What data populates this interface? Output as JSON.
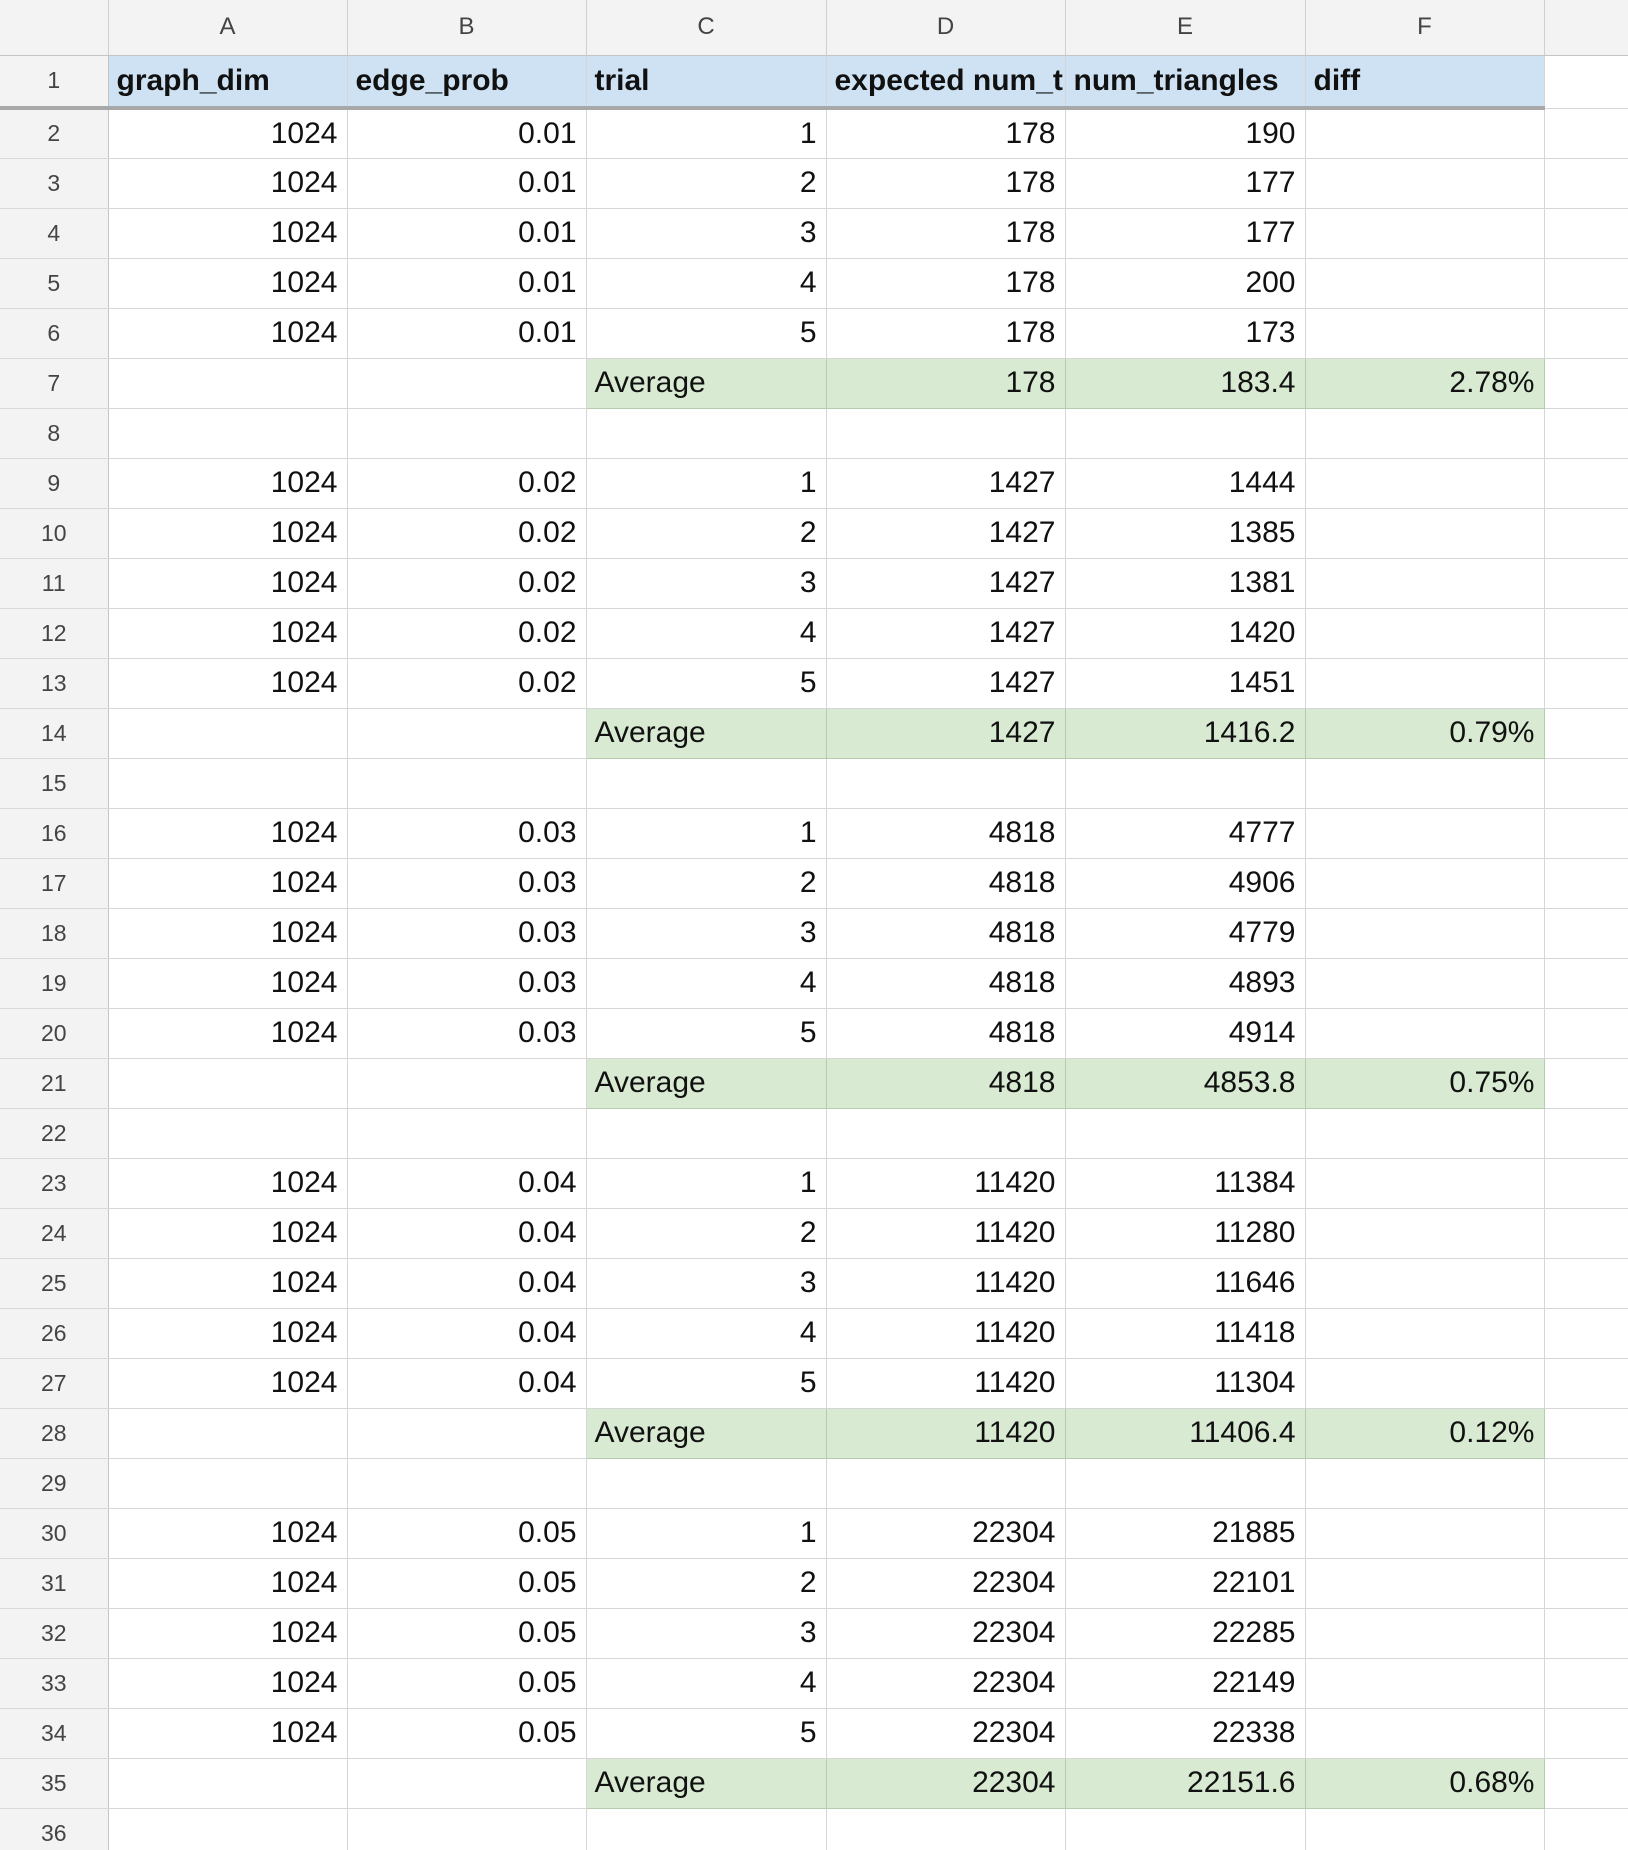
{
  "columns": [
    "A",
    "B",
    "C",
    "D",
    "E",
    "F"
  ],
  "header": {
    "row": "1",
    "cells": [
      "graph_dim",
      "edge_prob",
      "trial",
      "expected num_triangles",
      "num_triangles",
      "diff"
    ],
    "visible": [
      "graph_dim",
      "edge_prob",
      "trial",
      "expected num_t",
      "num_triangles",
      "diff"
    ]
  },
  "rows": [
    {
      "row": "2",
      "kind": "data",
      "cells": [
        "1024",
        "0.01",
        "1",
        "178",
        "190",
        ""
      ]
    },
    {
      "row": "3",
      "kind": "data",
      "cells": [
        "1024",
        "0.01",
        "2",
        "178",
        "177",
        ""
      ]
    },
    {
      "row": "4",
      "kind": "data",
      "cells": [
        "1024",
        "0.01",
        "3",
        "178",
        "177",
        ""
      ]
    },
    {
      "row": "5",
      "kind": "data",
      "cells": [
        "1024",
        "0.01",
        "4",
        "178",
        "200",
        ""
      ]
    },
    {
      "row": "6",
      "kind": "data",
      "cells": [
        "1024",
        "0.01",
        "5",
        "178",
        "173",
        ""
      ]
    },
    {
      "row": "7",
      "kind": "avg",
      "cells": [
        "",
        "",
        "Average",
        "178",
        "183.4",
        "2.78%"
      ]
    },
    {
      "row": "8",
      "kind": "blank",
      "cells": [
        "",
        "",
        "",
        "",
        "",
        ""
      ]
    },
    {
      "row": "9",
      "kind": "data",
      "cells": [
        "1024",
        "0.02",
        "1",
        "1427",
        "1444",
        ""
      ]
    },
    {
      "row": "10",
      "kind": "data",
      "cells": [
        "1024",
        "0.02",
        "2",
        "1427",
        "1385",
        ""
      ]
    },
    {
      "row": "11",
      "kind": "data",
      "cells": [
        "1024",
        "0.02",
        "3",
        "1427",
        "1381",
        ""
      ]
    },
    {
      "row": "12",
      "kind": "data",
      "cells": [
        "1024",
        "0.02",
        "4",
        "1427",
        "1420",
        ""
      ]
    },
    {
      "row": "13",
      "kind": "data",
      "cells": [
        "1024",
        "0.02",
        "5",
        "1427",
        "1451",
        ""
      ]
    },
    {
      "row": "14",
      "kind": "avg",
      "cells": [
        "",
        "",
        "Average",
        "1427",
        "1416.2",
        "0.79%"
      ]
    },
    {
      "row": "15",
      "kind": "blank",
      "cells": [
        "",
        "",
        "",
        "",
        "",
        ""
      ]
    },
    {
      "row": "16",
      "kind": "data",
      "cells": [
        "1024",
        "0.03",
        "1",
        "4818",
        "4777",
        ""
      ]
    },
    {
      "row": "17",
      "kind": "data",
      "cells": [
        "1024",
        "0.03",
        "2",
        "4818",
        "4906",
        ""
      ]
    },
    {
      "row": "18",
      "kind": "data",
      "cells": [
        "1024",
        "0.03",
        "3",
        "4818",
        "4779",
        ""
      ]
    },
    {
      "row": "19",
      "kind": "data",
      "cells": [
        "1024",
        "0.03",
        "4",
        "4818",
        "4893",
        ""
      ]
    },
    {
      "row": "20",
      "kind": "data",
      "cells": [
        "1024",
        "0.03",
        "5",
        "4818",
        "4914",
        ""
      ]
    },
    {
      "row": "21",
      "kind": "avg",
      "cells": [
        "",
        "",
        "Average",
        "4818",
        "4853.8",
        "0.75%"
      ]
    },
    {
      "row": "22",
      "kind": "blank",
      "cells": [
        "",
        "",
        "",
        "",
        "",
        ""
      ]
    },
    {
      "row": "23",
      "kind": "data",
      "cells": [
        "1024",
        "0.04",
        "1",
        "11420",
        "11384",
        ""
      ]
    },
    {
      "row": "24",
      "kind": "data",
      "cells": [
        "1024",
        "0.04",
        "2",
        "11420",
        "11280",
        ""
      ]
    },
    {
      "row": "25",
      "kind": "data",
      "cells": [
        "1024",
        "0.04",
        "3",
        "11420",
        "11646",
        ""
      ]
    },
    {
      "row": "26",
      "kind": "data",
      "cells": [
        "1024",
        "0.04",
        "4",
        "11420",
        "11418",
        ""
      ]
    },
    {
      "row": "27",
      "kind": "data",
      "cells": [
        "1024",
        "0.04",
        "5",
        "11420",
        "11304",
        ""
      ]
    },
    {
      "row": "28",
      "kind": "avg",
      "cells": [
        "",
        "",
        "Average",
        "11420",
        "11406.4",
        "0.12%"
      ]
    },
    {
      "row": "29",
      "kind": "blank",
      "cells": [
        "",
        "",
        "",
        "",
        "",
        ""
      ]
    },
    {
      "row": "30",
      "kind": "data",
      "cells": [
        "1024",
        "0.05",
        "1",
        "22304",
        "21885",
        ""
      ]
    },
    {
      "row": "31",
      "kind": "data",
      "cells": [
        "1024",
        "0.05",
        "2",
        "22304",
        "22101",
        ""
      ]
    },
    {
      "row": "32",
      "kind": "data",
      "cells": [
        "1024",
        "0.05",
        "3",
        "22304",
        "22285",
        ""
      ]
    },
    {
      "row": "33",
      "kind": "data",
      "cells": [
        "1024",
        "0.05",
        "4",
        "22304",
        "22149",
        ""
      ]
    },
    {
      "row": "34",
      "kind": "data",
      "cells": [
        "1024",
        "0.05",
        "5",
        "22304",
        "22338",
        ""
      ]
    },
    {
      "row": "35",
      "kind": "avg",
      "cells": [
        "",
        "",
        "Average",
        "22304",
        "22151.6",
        "0.68%"
      ]
    },
    {
      "row": "36",
      "kind": "blank",
      "cells": [
        "",
        "",
        "",
        "",
        "",
        ""
      ]
    }
  ],
  "colors": {
    "header_fill": "#cfe2f3",
    "average_fill": "#d9ead3",
    "gridline": "#d6d6d6",
    "chrome": "#f3f3f3"
  }
}
